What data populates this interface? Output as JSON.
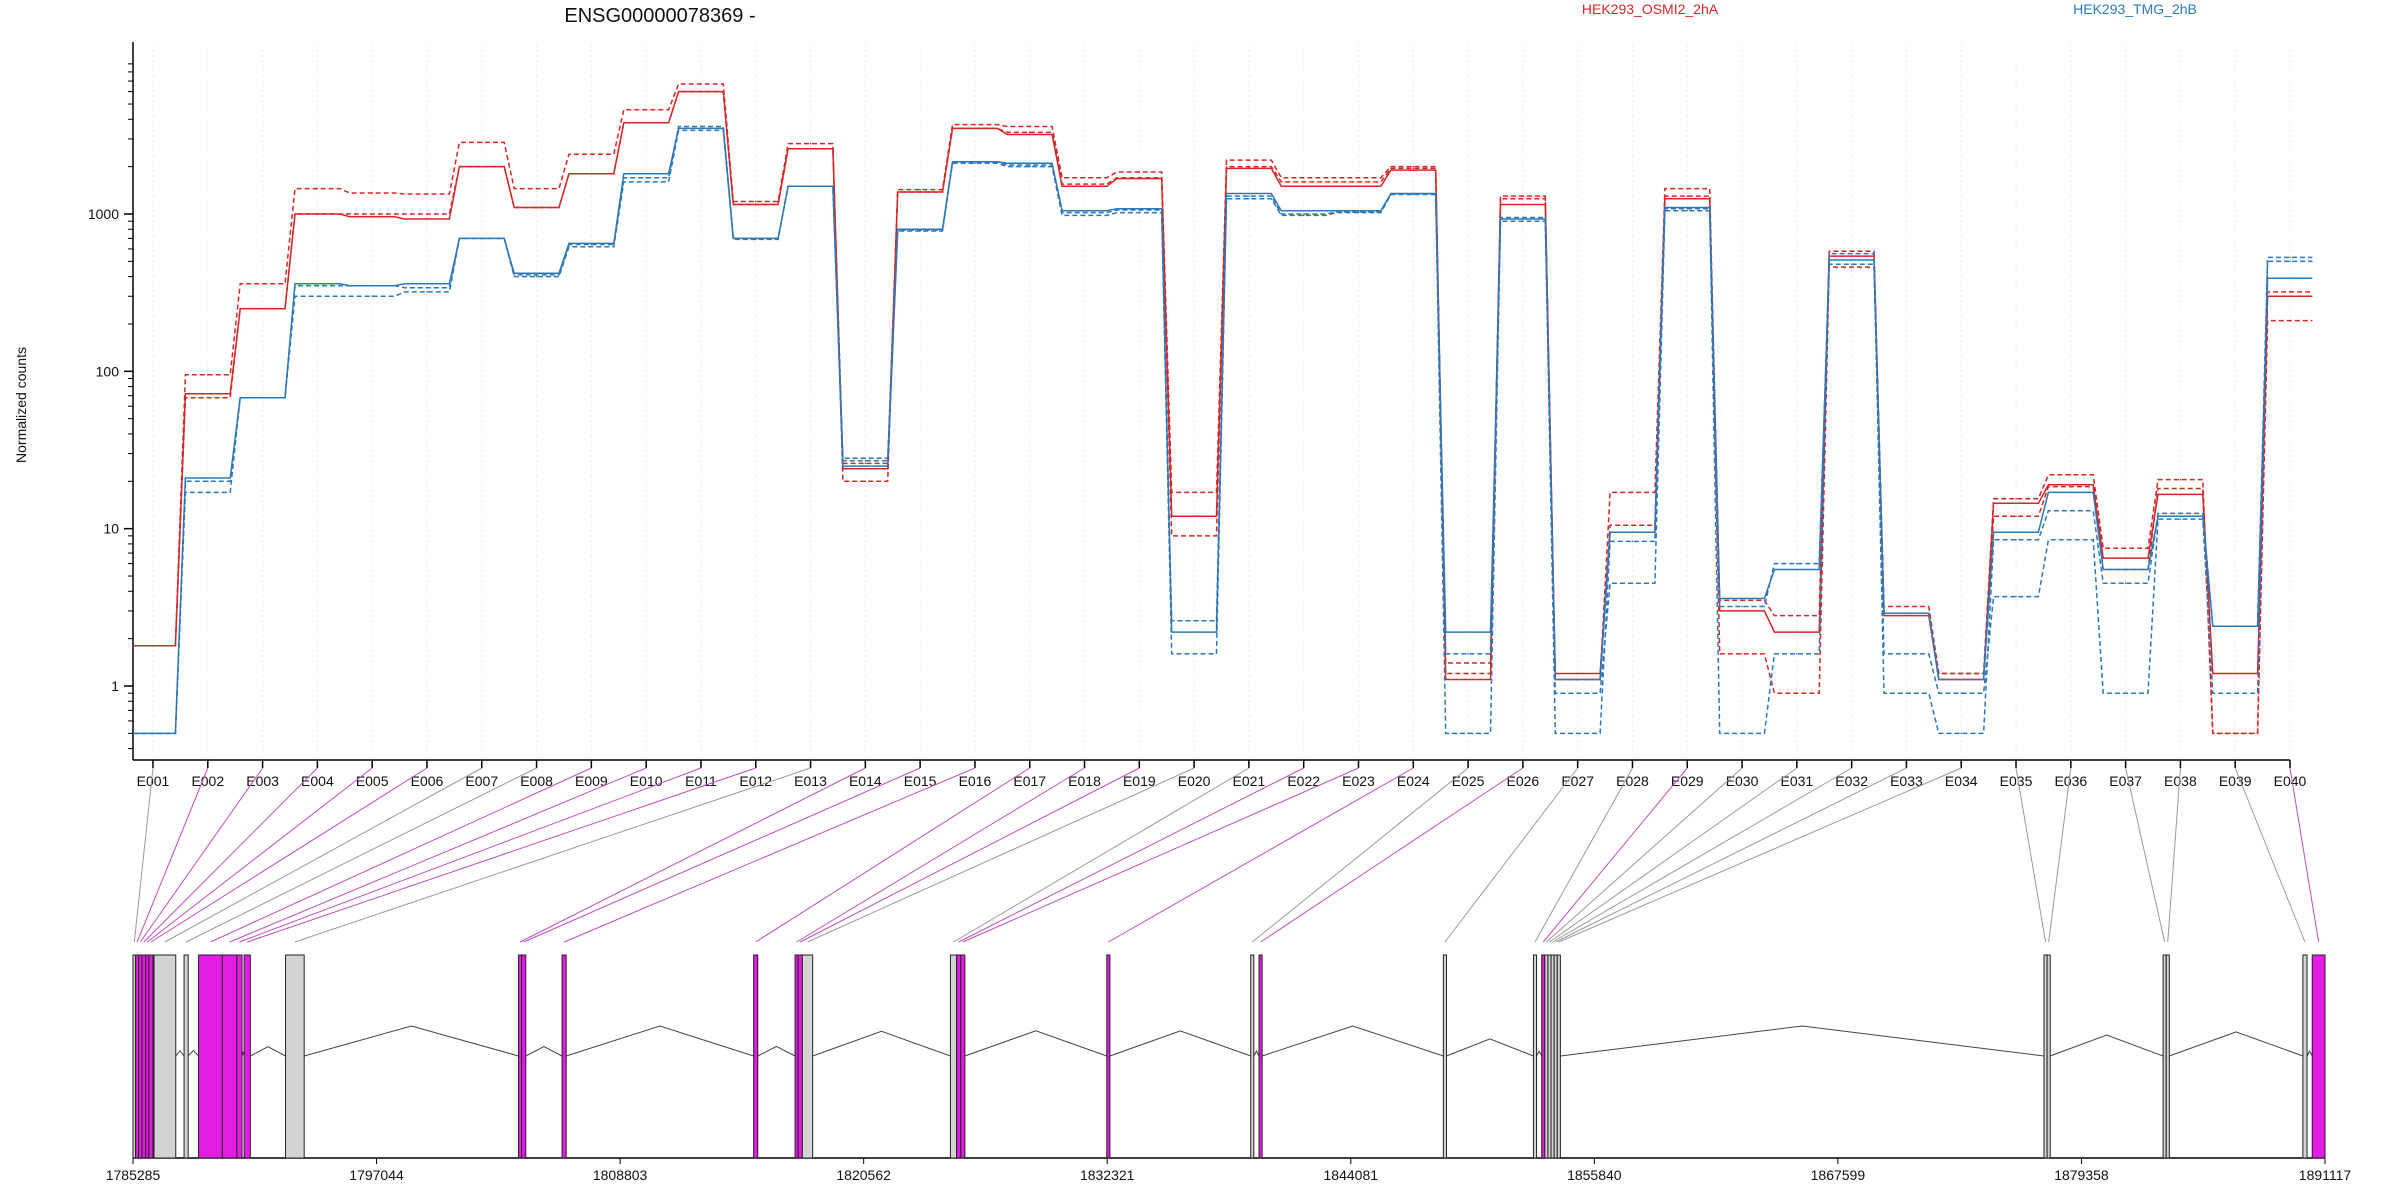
{
  "chart_data": {
    "type": "line",
    "title": "ENSG00000078369 -",
    "ylabel": "Normalized counts",
    "yscale": "log",
    "yticks": [
      1,
      10,
      100,
      1000
    ],
    "ytick_labels": [
      "1",
      "10",
      "100",
      "1000"
    ],
    "categories": [
      "E001",
      "E002",
      "E003",
      "E004",
      "E005",
      "E006",
      "E007",
      "E008",
      "E009",
      "E010",
      "E011",
      "E012",
      "E013",
      "E014",
      "E015",
      "E016",
      "E017",
      "E018",
      "E019",
      "E020",
      "E021",
      "E022",
      "E023",
      "E024",
      "E025",
      "E026",
      "E027",
      "E028",
      "E029",
      "E030",
      "E031",
      "E032",
      "E033",
      "E034",
      "E035",
      "E036",
      "E037",
      "E038",
      "E039",
      "E040"
    ],
    "legend": [
      {
        "name": "HEK293_OSMI2_2hA",
        "color": "#d62728"
      },
      {
        "name": "HEK293_TMG_2hB",
        "color": "#2e78b7"
      }
    ],
    "series": [
      {
        "name": "HEK293_OSMI2_2hA",
        "group": "OSMI2",
        "color": "#d62728",
        "dashed": false,
        "values": [
          1.8,
          72,
          250,
          1000,
          960,
          930,
          2000,
          1100,
          1800,
          3800,
          6000,
          1150,
          2600,
          24,
          1380,
          3500,
          3200,
          1500,
          1680,
          12,
          1950,
          1500,
          1500,
          1900,
          1.1,
          1150,
          1.2,
          9.5,
          1250,
          3,
          2.2,
          540,
          2.8,
          1.1,
          14.5,
          19,
          6.5,
          16.5,
          1.2,
          300
        ]
      },
      {
        "name": "HEK293_OSMI2_2hA",
        "group": "OSMI2",
        "color": "#d62728",
        "dashed": true,
        "values": [
          1.8,
          95,
          360,
          1450,
          1360,
          1340,
          2850,
          1450,
          2400,
          4600,
          6700,
          1200,
          2800,
          20,
          1430,
          3700,
          3600,
          1700,
          1850,
          17,
          2200,
          1700,
          1700,
          2000,
          1.4,
          1300,
          1.1,
          17,
          1450,
          3.5,
          2.8,
          580,
          3.2,
          1.2,
          15.5,
          22,
          7.5,
          20.5,
          0.5,
          210
        ]
      },
      {
        "name": "HEK293_OSMI2_2hA",
        "group": "OSMI2",
        "color": "#d62728",
        "dashed": true,
        "values": [
          1.8,
          68,
          250,
          1000,
          1000,
          1000,
          2000,
          1100,
          1800,
          3800,
          6000,
          1150,
          2600,
          26,
          1380,
          3500,
          3300,
          1550,
          1700,
          9,
          2000,
          1600,
          1600,
          1950,
          1.2,
          1250,
          1.1,
          10.5,
          1300,
          1.6,
          0.9,
          460,
          2.9,
          1.2,
          12,
          18.5,
          5.5,
          18,
          0.5,
          320
        ]
      },
      {
        "name": "HEK293_TMG_2hB",
        "group": "TMG",
        "color": "#2e78b7",
        "dashed": false,
        "values": [
          0.5,
          21,
          68,
          360,
          350,
          360,
          700,
          420,
          650,
          1800,
          3500,
          700,
          1500,
          25,
          800,
          2150,
          2100,
          1050,
          1080,
          2.2,
          1350,
          1050,
          1050,
          1350,
          2.2,
          930,
          1.1,
          9.5,
          1100,
          3.6,
          5.5,
          510,
          2.9,
          1.1,
          9.5,
          17,
          5.5,
          12,
          2.4,
          390
        ]
      },
      {
        "name": "HEK293_TMG_2hB",
        "group": "TMG",
        "color": "#2e78b7",
        "dashed": true,
        "values": [
          0.5,
          17,
          68,
          300,
          300,
          320,
          700,
          400,
          620,
          1600,
          3400,
          690,
          1500,
          28,
          780,
          2100,
          2000,
          980,
          1020,
          1.6,
          1250,
          980,
          1020,
          1330,
          1.6,
          900,
          0.9,
          4.5,
          1050,
          3.2,
          6,
          480,
          1.6,
          0.9,
          3.7,
          8.5,
          0.9,
          11.5,
          0.9,
          500
        ]
      },
      {
        "name": "HEK293_TMG_2hB",
        "group": "TMG",
        "color": "#2e78b7",
        "dashed": true,
        "values": [
          0.5,
          20,
          68,
          350,
          350,
          340,
          700,
          410,
          640,
          1700,
          3600,
          700,
          1500,
          27,
          790,
          2150,
          2050,
          1020,
          1060,
          2.6,
          1300,
          1000,
          1030,
          1340,
          0.5,
          950,
          0.5,
          8.3,
          1080,
          0.5,
          1.6,
          560,
          0.9,
          0.5,
          8.5,
          13,
          4.5,
          12.5,
          2.4,
          530
        ]
      }
    ],
    "gene_coordinates": [
      "1785285",
      "1797044",
      "1808803",
      "1820562",
      "1832321",
      "1844081",
      "1855840",
      "1867599",
      "1879358",
      "1891117"
    ],
    "gene_range": [
      1785285,
      1891117
    ],
    "exons": [
      {
        "id": "E001",
        "start": 1785285,
        "end": 1785410,
        "highlight": false
      },
      {
        "id": "E002",
        "start": 1785410,
        "end": 1785560,
        "highlight": true
      },
      {
        "id": "E003",
        "start": 1785560,
        "end": 1785720,
        "highlight": true
      },
      {
        "id": "E004",
        "start": 1785720,
        "end": 1785900,
        "highlight": true
      },
      {
        "id": "E005",
        "start": 1785900,
        "end": 1786050,
        "highlight": true
      },
      {
        "id": "E006",
        "start": 1786050,
        "end": 1786250,
        "highlight": true
      },
      {
        "id": "E007",
        "start": 1786300,
        "end": 1787350,
        "highlight": false
      },
      {
        "id": "E008",
        "start": 1787750,
        "end": 1787950,
        "highlight": false
      },
      {
        "id": "E009",
        "start": 1788450,
        "end": 1789600,
        "highlight": true
      },
      {
        "id": "E010",
        "start": 1789600,
        "end": 1790300,
        "highlight": true
      },
      {
        "id": "E011",
        "start": 1790300,
        "end": 1790550,
        "highlight": true
      },
      {
        "id": "E012",
        "start": 1790650,
        "end": 1790950,
        "highlight": true
      },
      {
        "id": "E013",
        "start": 1792650,
        "end": 1793550,
        "highlight": false
      },
      {
        "id": "E014",
        "start": 1803900,
        "end": 1804050,
        "highlight": true
      },
      {
        "id": "E015",
        "start": 1804050,
        "end": 1804250,
        "highlight": true
      },
      {
        "id": "E016",
        "start": 1806000,
        "end": 1806200,
        "highlight": true
      },
      {
        "id": "E017",
        "start": 1815250,
        "end": 1815450,
        "highlight": true
      },
      {
        "id": "E018",
        "start": 1817250,
        "end": 1817400,
        "highlight": true
      },
      {
        "id": "E019",
        "start": 1817400,
        "end": 1817600,
        "highlight": true
      },
      {
        "id": "E020",
        "start": 1817600,
        "end": 1818100,
        "highlight": false
      },
      {
        "id": "E021",
        "start": 1824750,
        "end": 1825050,
        "highlight": false
      },
      {
        "id": "E022",
        "start": 1825050,
        "end": 1825250,
        "highlight": true
      },
      {
        "id": "E023",
        "start": 1825250,
        "end": 1825450,
        "highlight": true
      },
      {
        "id": "E024",
        "start": 1832300,
        "end": 1832450,
        "highlight": true
      },
      {
        "id": "E025",
        "start": 1839250,
        "end": 1839400,
        "highlight": false
      },
      {
        "id": "E026",
        "start": 1839650,
        "end": 1839800,
        "highlight": true
      },
      {
        "id": "E027",
        "start": 1848550,
        "end": 1848700,
        "highlight": false
      },
      {
        "id": "E028",
        "start": 1852900,
        "end": 1853050,
        "highlight": false
      },
      {
        "id": "E029",
        "start": 1853300,
        "end": 1853450,
        "highlight": true
      },
      {
        "id": "E030",
        "start": 1853450,
        "end": 1853600,
        "highlight": false
      },
      {
        "id": "E031",
        "start": 1853600,
        "end": 1853750,
        "highlight": false
      },
      {
        "id": "E032",
        "start": 1853750,
        "end": 1853900,
        "highlight": false
      },
      {
        "id": "E033",
        "start": 1853900,
        "end": 1854050,
        "highlight": false
      },
      {
        "id": "E034",
        "start": 1854050,
        "end": 1854200,
        "highlight": false
      },
      {
        "id": "E035",
        "start": 1877550,
        "end": 1877700,
        "highlight": false
      },
      {
        "id": "E036",
        "start": 1877700,
        "end": 1877850,
        "highlight": false
      },
      {
        "id": "E037",
        "start": 1883300,
        "end": 1883450,
        "highlight": false
      },
      {
        "id": "E038",
        "start": 1883450,
        "end": 1883600,
        "highlight": false
      },
      {
        "id": "E039",
        "start": 1890050,
        "end": 1890250,
        "highlight": false
      },
      {
        "id": "E040",
        "start": 1890500,
        "end": 1891117,
        "highlight": true
      }
    ]
  }
}
